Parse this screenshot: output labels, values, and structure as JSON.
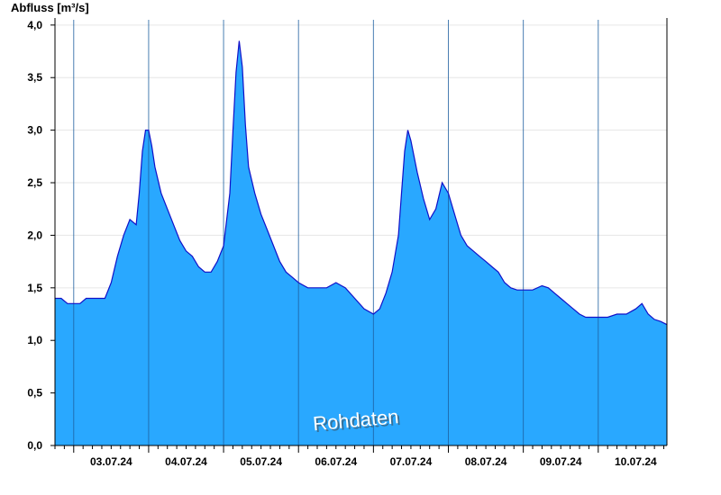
{
  "chart_data": {
    "type": "area",
    "title": "",
    "ylabel": "Abfluss [m³/s]",
    "xlabel": "",
    "ylim": [
      0,
      4.05
    ],
    "xlim": [
      "2024-07-02T18:00",
      "2024-07-10T22:00"
    ],
    "yticks": [
      0,
      0.5,
      1.0,
      1.5,
      2.0,
      2.5,
      3.0,
      3.5,
      4.0
    ],
    "ytick_labels": [
      "0,0",
      "0,5",
      "1,0",
      "1,5",
      "2,0",
      "2,5",
      "3,0",
      "3,5",
      "4,0"
    ],
    "day_boundaries": [
      "2024-07-03T00:00",
      "2024-07-04T00:00",
      "2024-07-05T00:00",
      "2024-07-06T00:00",
      "2024-07-07T00:00",
      "2024-07-08T00:00",
      "2024-07-09T00:00",
      "2024-07-10T00:00"
    ],
    "xtick_labels": [
      "03.07.24",
      "04.07.24",
      "05.07.24",
      "06.07.24",
      "07.07.24",
      "08.07.24",
      "09.07.24",
      "10.07.24"
    ],
    "grid": "horizontal",
    "fill_color": "#29a8ff",
    "line_color": "#1010c8",
    "watermark": "Rohdaten",
    "series": [
      {
        "x": [
          "2024-07-02T18:00",
          "2024-07-02T20:00",
          "2024-07-02T22:00",
          "2024-07-03T00:00",
          "2024-07-03T02:00",
          "2024-07-03T04:00",
          "2024-07-03T06:00",
          "2024-07-03T08:00",
          "2024-07-03T10:00",
          "2024-07-03T12:00",
          "2024-07-03T14:00",
          "2024-07-03T16:00",
          "2024-07-03T18:00",
          "2024-07-03T20:00",
          "2024-07-03T21:00",
          "2024-07-03T22:00",
          "2024-07-03T23:00",
          "2024-07-04T00:00",
          "2024-07-04T01:00",
          "2024-07-04T02:00",
          "2024-07-04T04:00",
          "2024-07-04T06:00",
          "2024-07-04T08:00",
          "2024-07-04T10:00",
          "2024-07-04T12:00",
          "2024-07-04T14:00",
          "2024-07-04T16:00",
          "2024-07-04T18:00",
          "2024-07-04T20:00",
          "2024-07-04T22:00",
          "2024-07-05T00:00",
          "2024-07-05T02:00",
          "2024-07-05T03:00",
          "2024-07-05T04:00",
          "2024-07-05T05:00",
          "2024-07-05T06:00",
          "2024-07-05T07:00",
          "2024-07-05T08:00",
          "2024-07-05T10:00",
          "2024-07-05T12:00",
          "2024-07-05T14:00",
          "2024-07-05T16:00",
          "2024-07-05T18:00",
          "2024-07-05T20:00",
          "2024-07-05T22:00",
          "2024-07-06T00:00",
          "2024-07-06T03:00",
          "2024-07-06T06:00",
          "2024-07-06T09:00",
          "2024-07-06T12:00",
          "2024-07-06T15:00",
          "2024-07-06T18:00",
          "2024-07-06T21:00",
          "2024-07-07T00:00",
          "2024-07-07T02:00",
          "2024-07-07T04:00",
          "2024-07-07T06:00",
          "2024-07-07T08:00",
          "2024-07-07T09:00",
          "2024-07-07T10:00",
          "2024-07-07T11:00",
          "2024-07-07T12:00",
          "2024-07-07T14:00",
          "2024-07-07T16:00",
          "2024-07-07T18:00",
          "2024-07-07T20:00",
          "2024-07-07T22:00",
          "2024-07-08T00:00",
          "2024-07-08T02:00",
          "2024-07-08T04:00",
          "2024-07-08T06:00",
          "2024-07-08T08:00",
          "2024-07-08T10:00",
          "2024-07-08T12:00",
          "2024-07-08T14:00",
          "2024-07-08T16:00",
          "2024-07-08T18:00",
          "2024-07-08T20:00",
          "2024-07-08T22:00",
          "2024-07-09T00:00",
          "2024-07-09T03:00",
          "2024-07-09T06:00",
          "2024-07-09T08:00",
          "2024-07-09T10:00",
          "2024-07-09T12:00",
          "2024-07-09T14:00",
          "2024-07-09T16:00",
          "2024-07-09T18:00",
          "2024-07-09T20:00",
          "2024-07-09T22:00",
          "2024-07-10T00:00",
          "2024-07-10T03:00",
          "2024-07-10T06:00",
          "2024-07-10T09:00",
          "2024-07-10T12:00",
          "2024-07-10T14:00",
          "2024-07-10T16:00",
          "2024-07-10T18:00",
          "2024-07-10T20:00",
          "2024-07-10T22:00"
        ],
        "y": [
          1.4,
          1.4,
          1.35,
          1.35,
          1.35,
          1.4,
          1.4,
          1.4,
          1.4,
          1.55,
          1.8,
          2.0,
          2.15,
          2.1,
          2.4,
          2.8,
          3.0,
          3.0,
          2.85,
          2.65,
          2.4,
          2.25,
          2.1,
          1.95,
          1.85,
          1.8,
          1.7,
          1.65,
          1.65,
          1.75,
          1.9,
          2.4,
          3.0,
          3.55,
          3.85,
          3.6,
          3.05,
          2.65,
          2.4,
          2.2,
          2.05,
          1.9,
          1.75,
          1.65,
          1.6,
          1.55,
          1.5,
          1.5,
          1.5,
          1.55,
          1.5,
          1.4,
          1.3,
          1.25,
          1.3,
          1.45,
          1.65,
          2.0,
          2.4,
          2.8,
          3.0,
          2.9,
          2.6,
          2.35,
          2.15,
          2.25,
          2.5,
          2.4,
          2.2,
          2.0,
          1.9,
          1.85,
          1.8,
          1.75,
          1.7,
          1.65,
          1.55,
          1.5,
          1.48,
          1.48,
          1.48,
          1.52,
          1.5,
          1.45,
          1.4,
          1.35,
          1.3,
          1.25,
          1.22,
          1.22,
          1.22,
          1.22,
          1.25,
          1.25,
          1.3,
          1.35,
          1.25,
          1.2,
          1.18,
          1.15
        ]
      }
    ]
  }
}
